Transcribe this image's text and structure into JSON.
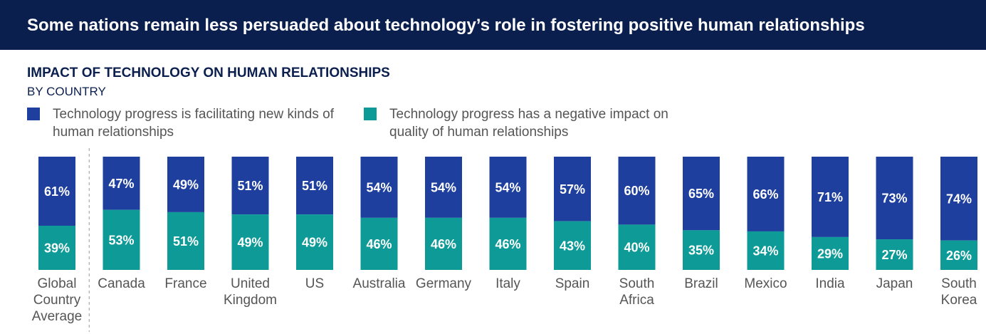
{
  "banner": {
    "title": "Some nations remain less persuaded about technology’s role in fostering positive human relationships"
  },
  "colors": {
    "banner_bg": "#0b1f4f",
    "positive": "#1e3f9e",
    "negative": "#0e9a96",
    "title": "#0b1f4f",
    "label": "#555555"
  },
  "legend": [
    {
      "label": "Technology progress is facilitating new kinds of human relationships",
      "color": "#1e3f9e"
    },
    {
      "label": "Technology progress has a negative impact on quality of human relationships",
      "color": "#0e9a96"
    }
  ],
  "chart_data": {
    "type": "bar",
    "stacked": true,
    "title": "IMPACT OF TECHNOLOGY ON HUMAN RELATIONSHIPS",
    "subtitle": "BY COUNTRY",
    "categories": [
      "Global Country Average",
      "Canada",
      "France",
      "United Kingdom",
      "US",
      "Australia",
      "Germany",
      "Italy",
      "Spain",
      "South Africa",
      "Brazil",
      "Mexico",
      "India",
      "Japan",
      "South Korea"
    ],
    "category_lines": [
      [
        "Global",
        "Country",
        "Average"
      ],
      [
        "Canada"
      ],
      [
        "France"
      ],
      [
        "United",
        "Kingdom"
      ],
      [
        "US"
      ],
      [
        "Australia"
      ],
      [
        "Germany"
      ],
      [
        "Italy"
      ],
      [
        "Spain"
      ],
      [
        "South",
        "Africa"
      ],
      [
        "Brazil"
      ],
      [
        "Mexico"
      ],
      [
        "India"
      ],
      [
        "Japan"
      ],
      [
        "South",
        "Korea"
      ]
    ],
    "series": [
      {
        "name": "Technology progress is facilitating new kinds of human relationships",
        "values": [
          61,
          47,
          49,
          51,
          51,
          54,
          54,
          54,
          57,
          60,
          65,
          66,
          71,
          73,
          74
        ]
      },
      {
        "name": "Technology progress has a negative impact on quality of human relationships",
        "values": [
          39,
          53,
          51,
          49,
          49,
          46,
          46,
          46,
          43,
          40,
          35,
          34,
          29,
          27,
          26
        ]
      }
    ],
    "value_suffix": "%",
    "ylim": [
      0,
      100
    ],
    "grid": false,
    "legend_position": "top-left",
    "separator_after_first": true
  }
}
